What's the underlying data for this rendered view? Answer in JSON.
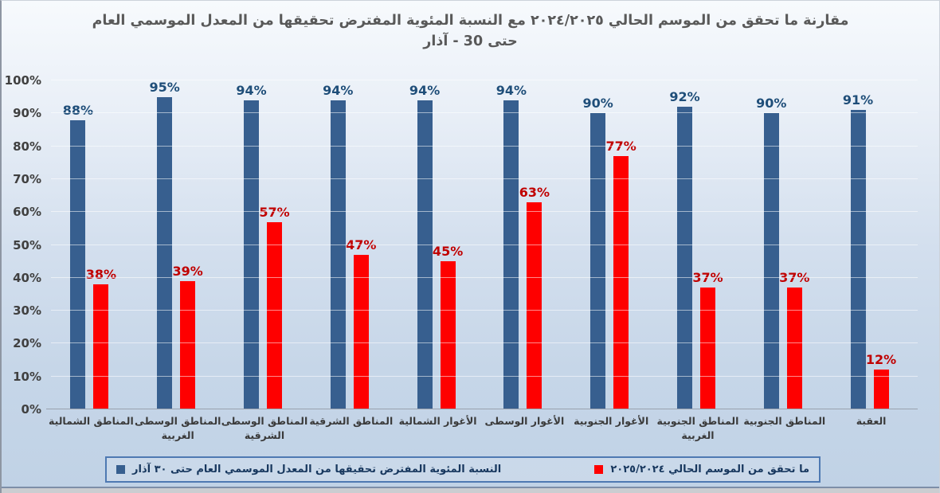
{
  "chart_data": {
    "type": "bar",
    "title": "مقارنة ما تحقق من الموسم الحالي ٢٠٢٤/٢٠٢٥  مع النسبة المئوية المفترض تحقيقها من المعدل الموسمي العام",
    "subtitle": "حتى 30 - آذار",
    "categories": [
      "المناطق الشمالية",
      "المناطق الوسطى\nالغربية",
      "المناطق الوسطى\nالشرقية",
      "المناطق الشرقية",
      "الأغوار الشمالية",
      "الأغوار الوسطى",
      "الأغوار الجنوبية",
      "المناطق الجنوبية\nالغربية",
      "المناطق الجنوبية",
      "العقبة"
    ],
    "series": [
      {
        "name": "النسبة المئوية المفترض تحقيقها من المعدل الموسمي العام حتى ٣٠ آذار",
        "color": "#375F8F",
        "label_color": "#1F4E79",
        "values": [
          88,
          95,
          94,
          94,
          94,
          94,
          90,
          92,
          90,
          91
        ]
      },
      {
        "name": "ما تحقق من  الموسم الحالي ٢٠٢٥/٢٠٢٤",
        "color": "#FE0000",
        "label_color": "#C00000",
        "values": [
          38,
          39,
          57,
          47,
          45,
          63,
          77,
          37,
          37,
          12
        ]
      }
    ],
    "ylim": [
      0,
      100
    ],
    "yticks": [
      "0%",
      "10%",
      "20%",
      "30%",
      "40%",
      "50%",
      "60%",
      "70%",
      "80%",
      "90%",
      "100%"
    ],
    "xlabel": "",
    "ylabel": "",
    "grid": true,
    "legend_position": "bottom",
    "value_suffix": "%"
  },
  "style_colors": {
    "title_text": "#595959",
    "axis_text": "#404040",
    "category_text": "#3a3a3a",
    "legend_text": "#17375E",
    "legend_border": "#4E79B2"
  }
}
